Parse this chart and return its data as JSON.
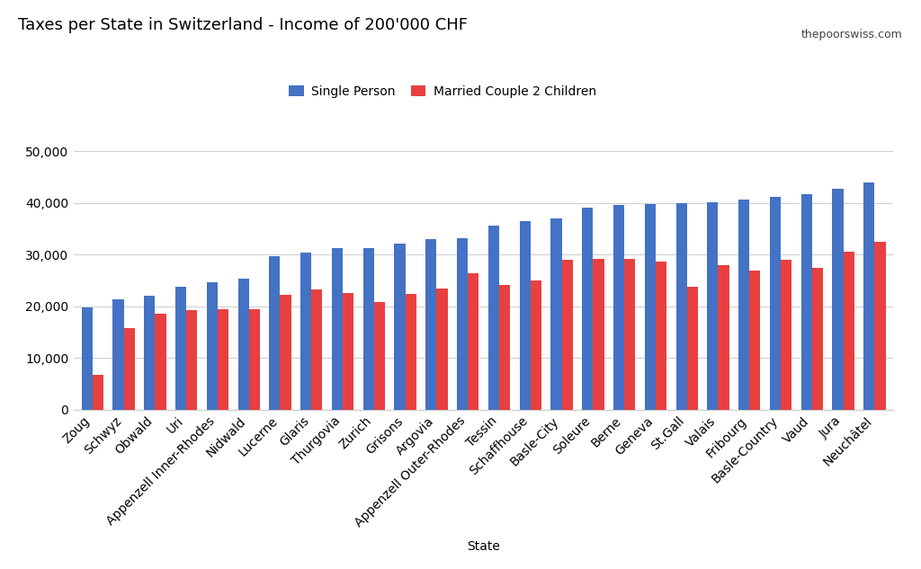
{
  "title": "Taxes per State in Switzerland - Income of 200'000 CHF",
  "watermark": "thepoorswiss.com",
  "xlabel": "State",
  "legend_labels": [
    "Single Person",
    "Married Couple 2 Children"
  ],
  "bar_colors": [
    "#4472c4",
    "#e84040"
  ],
  "categories": [
    "Zoug",
    "Schwyz",
    "Obwald",
    "Uri",
    "Appenzell Inner-Rhodes",
    "Nidwald",
    "Lucerne",
    "Glaris",
    "Thurgovia",
    "Zurich",
    "Grisons",
    "Argovia",
    "Appenzell Outer-Rhodes",
    "Tessin",
    "Schaffhouse",
    "Basle-City",
    "Soleure",
    "Berne",
    "Geneva",
    "St.Gall",
    "Valais",
    "Fribourg",
    "Basle-Country",
    "Vaud",
    "Jura",
    "Neuchâtel"
  ],
  "single_person": [
    19700,
    21300,
    22100,
    23700,
    24700,
    25400,
    29700,
    30300,
    31200,
    31300,
    32100,
    33000,
    33200,
    35600,
    36400,
    36900,
    39100,
    39500,
    39800,
    39900,
    40100,
    40700,
    41200,
    41700,
    42700,
    43900
  ],
  "married_couple": [
    6700,
    15800,
    18500,
    19300,
    19400,
    19400,
    22200,
    23200,
    22600,
    20800,
    22300,
    23400,
    26300,
    24100,
    25000,
    29000,
    29100,
    29200,
    28700,
    23700,
    28000,
    26900,
    29000,
    27500,
    30500,
    32500
  ],
  "ylim": [
    0,
    55000
  ],
  "yticks": [
    0,
    10000,
    20000,
    30000,
    40000,
    50000
  ],
  "background_color": "#ffffff",
  "grid_color": "#d0d0d0",
  "title_fontsize": 13,
  "tick_fontsize": 10,
  "xlabel_fontsize": 10,
  "watermark_fontsize": 9,
  "legend_fontsize": 10
}
